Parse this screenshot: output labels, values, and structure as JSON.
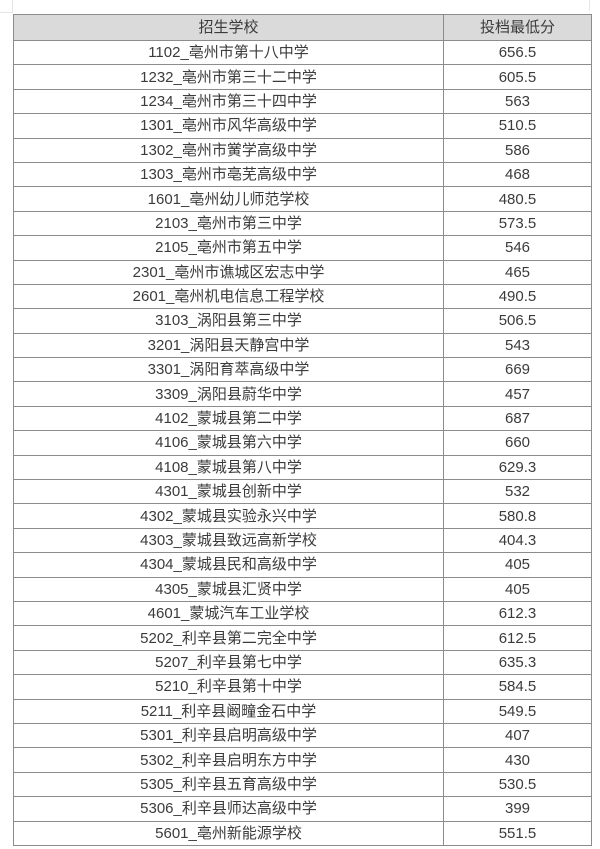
{
  "table": {
    "headers": [
      "招生学校",
      "投档最低分"
    ],
    "rows": [
      {
        "school": "1102_亳州市第十八中学",
        "score": "656.5"
      },
      {
        "school": "1232_亳州市第三十二中学",
        "score": "605.5"
      },
      {
        "school": "1234_亳州市第三十四中学",
        "score": "563"
      },
      {
        "school": "1301_亳州市风华高级中学",
        "score": "510.5"
      },
      {
        "school": "1302_亳州市黉学高级中学",
        "score": "586"
      },
      {
        "school": "1303_亳州市亳芜高级中学",
        "score": "468"
      },
      {
        "school": "1601_亳州幼儿师范学校",
        "score": "480.5"
      },
      {
        "school": "2103_亳州市第三中学",
        "score": "573.5"
      },
      {
        "school": "2105_亳州市第五中学",
        "score": "546"
      },
      {
        "school": "2301_亳州市谯城区宏志中学",
        "score": "465"
      },
      {
        "school": "2601_亳州机电信息工程学校",
        "score": "490.5"
      },
      {
        "school": "3103_涡阳县第三中学",
        "score": "506.5"
      },
      {
        "school": "3201_涡阳县天静宫中学",
        "score": "543"
      },
      {
        "school": "3301_涡阳育萃高级中学",
        "score": "669"
      },
      {
        "school": "3309_涡阳县蔚华中学",
        "score": "457"
      },
      {
        "school": "4102_蒙城县第二中学",
        "score": "687"
      },
      {
        "school": "4106_蒙城县第六中学",
        "score": "660"
      },
      {
        "school": "4108_蒙城县第八中学",
        "score": "629.3"
      },
      {
        "school": "4301_蒙城县创新中学",
        "score": "532"
      },
      {
        "school": "4302_蒙城县实验永兴中学",
        "score": "580.8"
      },
      {
        "school": "4303_蒙城县致远高新学校",
        "score": "404.3"
      },
      {
        "school": "4304_蒙城县民和高级中学",
        "score": "405"
      },
      {
        "school": "4305_蒙城县汇贤中学",
        "score": "405"
      },
      {
        "school": "4601_蒙城汽车工业学校",
        "score": "612.3"
      },
      {
        "school": "5202_利辛县第二完全中学",
        "score": "612.5"
      },
      {
        "school": "5207_利辛县第七中学",
        "score": "635.3"
      },
      {
        "school": "5210_利辛县第十中学",
        "score": "584.5"
      },
      {
        "school": "5211_利辛县阚疃金石中学",
        "score": "549.5"
      },
      {
        "school": "5301_利辛县启明高级中学",
        "score": "407"
      },
      {
        "school": "5302_利辛县启明东方中学",
        "score": "430"
      },
      {
        "school": "5305_利辛县五育高级中学",
        "score": "530.5"
      },
      {
        "school": "5306_利辛县师达高级中学",
        "score": "399"
      },
      {
        "school": "5601_亳州新能源学校",
        "score": "551.5"
      }
    ]
  },
  "colors": {
    "header_bg": "#dadada",
    "border": "#8c8c8c",
    "text": "#3b3b3b",
    "page_bg": "#ffffff"
  }
}
